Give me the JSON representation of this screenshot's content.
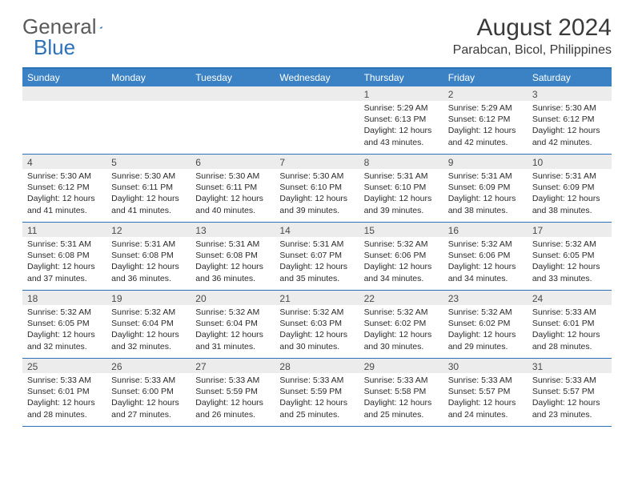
{
  "logo": {
    "text1": "General",
    "text2": "Blue"
  },
  "title": "August 2024",
  "location": "Parabcan, Bicol, Philippines",
  "colors": {
    "header_bg": "#3b82c4",
    "border": "#2d72b8",
    "daynum_bg": "#ececec",
    "text": "#2a2a2a",
    "logo_gray": "#5a5a5a",
    "logo_blue": "#2d72b8"
  },
  "dayNames": [
    "Sunday",
    "Monday",
    "Tuesday",
    "Wednesday",
    "Thursday",
    "Friday",
    "Saturday"
  ],
  "weeks": [
    [
      {
        "n": "",
        "sr": "",
        "ss": "",
        "dl": ""
      },
      {
        "n": "",
        "sr": "",
        "ss": "",
        "dl": ""
      },
      {
        "n": "",
        "sr": "",
        "ss": "",
        "dl": ""
      },
      {
        "n": "",
        "sr": "",
        "ss": "",
        "dl": ""
      },
      {
        "n": "1",
        "sr": "Sunrise: 5:29 AM",
        "ss": "Sunset: 6:13 PM",
        "dl": "Daylight: 12 hours and 43 minutes."
      },
      {
        "n": "2",
        "sr": "Sunrise: 5:29 AM",
        "ss": "Sunset: 6:12 PM",
        "dl": "Daylight: 12 hours and 42 minutes."
      },
      {
        "n": "3",
        "sr": "Sunrise: 5:30 AM",
        "ss": "Sunset: 6:12 PM",
        "dl": "Daylight: 12 hours and 42 minutes."
      }
    ],
    [
      {
        "n": "4",
        "sr": "Sunrise: 5:30 AM",
        "ss": "Sunset: 6:12 PM",
        "dl": "Daylight: 12 hours and 41 minutes."
      },
      {
        "n": "5",
        "sr": "Sunrise: 5:30 AM",
        "ss": "Sunset: 6:11 PM",
        "dl": "Daylight: 12 hours and 41 minutes."
      },
      {
        "n": "6",
        "sr": "Sunrise: 5:30 AM",
        "ss": "Sunset: 6:11 PM",
        "dl": "Daylight: 12 hours and 40 minutes."
      },
      {
        "n": "7",
        "sr": "Sunrise: 5:30 AM",
        "ss": "Sunset: 6:10 PM",
        "dl": "Daylight: 12 hours and 39 minutes."
      },
      {
        "n": "8",
        "sr": "Sunrise: 5:31 AM",
        "ss": "Sunset: 6:10 PM",
        "dl": "Daylight: 12 hours and 39 minutes."
      },
      {
        "n": "9",
        "sr": "Sunrise: 5:31 AM",
        "ss": "Sunset: 6:09 PM",
        "dl": "Daylight: 12 hours and 38 minutes."
      },
      {
        "n": "10",
        "sr": "Sunrise: 5:31 AM",
        "ss": "Sunset: 6:09 PM",
        "dl": "Daylight: 12 hours and 38 minutes."
      }
    ],
    [
      {
        "n": "11",
        "sr": "Sunrise: 5:31 AM",
        "ss": "Sunset: 6:08 PM",
        "dl": "Daylight: 12 hours and 37 minutes."
      },
      {
        "n": "12",
        "sr": "Sunrise: 5:31 AM",
        "ss": "Sunset: 6:08 PM",
        "dl": "Daylight: 12 hours and 36 minutes."
      },
      {
        "n": "13",
        "sr": "Sunrise: 5:31 AM",
        "ss": "Sunset: 6:08 PM",
        "dl": "Daylight: 12 hours and 36 minutes."
      },
      {
        "n": "14",
        "sr": "Sunrise: 5:31 AM",
        "ss": "Sunset: 6:07 PM",
        "dl": "Daylight: 12 hours and 35 minutes."
      },
      {
        "n": "15",
        "sr": "Sunrise: 5:32 AM",
        "ss": "Sunset: 6:06 PM",
        "dl": "Daylight: 12 hours and 34 minutes."
      },
      {
        "n": "16",
        "sr": "Sunrise: 5:32 AM",
        "ss": "Sunset: 6:06 PM",
        "dl": "Daylight: 12 hours and 34 minutes."
      },
      {
        "n": "17",
        "sr": "Sunrise: 5:32 AM",
        "ss": "Sunset: 6:05 PM",
        "dl": "Daylight: 12 hours and 33 minutes."
      }
    ],
    [
      {
        "n": "18",
        "sr": "Sunrise: 5:32 AM",
        "ss": "Sunset: 6:05 PM",
        "dl": "Daylight: 12 hours and 32 minutes."
      },
      {
        "n": "19",
        "sr": "Sunrise: 5:32 AM",
        "ss": "Sunset: 6:04 PM",
        "dl": "Daylight: 12 hours and 32 minutes."
      },
      {
        "n": "20",
        "sr": "Sunrise: 5:32 AM",
        "ss": "Sunset: 6:04 PM",
        "dl": "Daylight: 12 hours and 31 minutes."
      },
      {
        "n": "21",
        "sr": "Sunrise: 5:32 AM",
        "ss": "Sunset: 6:03 PM",
        "dl": "Daylight: 12 hours and 30 minutes."
      },
      {
        "n": "22",
        "sr": "Sunrise: 5:32 AM",
        "ss": "Sunset: 6:02 PM",
        "dl": "Daylight: 12 hours and 30 minutes."
      },
      {
        "n": "23",
        "sr": "Sunrise: 5:32 AM",
        "ss": "Sunset: 6:02 PM",
        "dl": "Daylight: 12 hours and 29 minutes."
      },
      {
        "n": "24",
        "sr": "Sunrise: 5:33 AM",
        "ss": "Sunset: 6:01 PM",
        "dl": "Daylight: 12 hours and 28 minutes."
      }
    ],
    [
      {
        "n": "25",
        "sr": "Sunrise: 5:33 AM",
        "ss": "Sunset: 6:01 PM",
        "dl": "Daylight: 12 hours and 28 minutes."
      },
      {
        "n": "26",
        "sr": "Sunrise: 5:33 AM",
        "ss": "Sunset: 6:00 PM",
        "dl": "Daylight: 12 hours and 27 minutes."
      },
      {
        "n": "27",
        "sr": "Sunrise: 5:33 AM",
        "ss": "Sunset: 5:59 PM",
        "dl": "Daylight: 12 hours and 26 minutes."
      },
      {
        "n": "28",
        "sr": "Sunrise: 5:33 AM",
        "ss": "Sunset: 5:59 PM",
        "dl": "Daylight: 12 hours and 25 minutes."
      },
      {
        "n": "29",
        "sr": "Sunrise: 5:33 AM",
        "ss": "Sunset: 5:58 PM",
        "dl": "Daylight: 12 hours and 25 minutes."
      },
      {
        "n": "30",
        "sr": "Sunrise: 5:33 AM",
        "ss": "Sunset: 5:57 PM",
        "dl": "Daylight: 12 hours and 24 minutes."
      },
      {
        "n": "31",
        "sr": "Sunrise: 5:33 AM",
        "ss": "Sunset: 5:57 PM",
        "dl": "Daylight: 12 hours and 23 minutes."
      }
    ]
  ]
}
